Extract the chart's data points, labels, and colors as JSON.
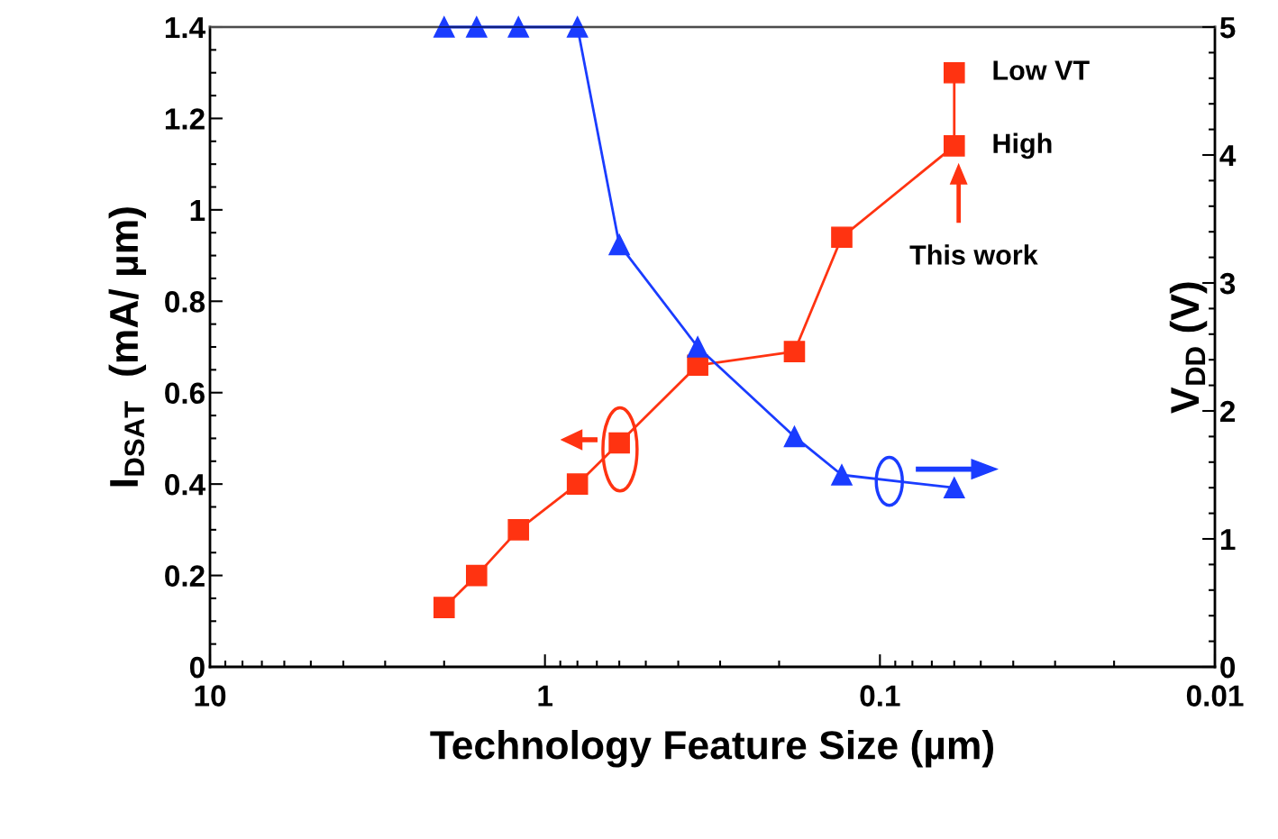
{
  "chart_data": {
    "type": "line",
    "xlabel": "Technology Feature Size (µm)",
    "ylabel": "I$_{DSAT}$  (mA/ µm)",
    "y2label": "V$_{DD}$ (V)",
    "log": "x",
    "xlim": [
      10,
      0.01
    ],
    "xticks": [
      10,
      1,
      0.1,
      0.01
    ],
    "ylim": [
      0,
      1.4
    ],
    "yticks": [
      0,
      0.2,
      0.4,
      0.6,
      0.8,
      1,
      1.2,
      1.4
    ],
    "y2lim": [
      0,
      5
    ],
    "y2ticks": [
      0,
      1,
      2,
      3,
      4,
      5
    ],
    "grid": false,
    "legend": false,
    "line_style": "solid",
    "series": [
      {
        "color": "#ff3311",
        "marker": "square",
        "x": [
          2,
          1.6,
          1.2,
          0.8,
          0.6,
          0.35,
          0.18,
          0.13,
          0.06,
          0.06
        ],
        "values": [
          0.13,
          0.2,
          0.3,
          0.4,
          0.49,
          0.66,
          0.69,
          0.94,
          1.14,
          1.3
        ]
      },
      {
        "color": "#1a3cff",
        "marker": "triangle",
        "axis": "y2",
        "x": [
          2,
          1.6,
          1.2,
          0.8,
          0.6,
          0.35,
          0.18,
          0.13,
          0.06
        ],
        "values": [
          5,
          5,
          5,
          5,
          3.3,
          2.5,
          1.8,
          1.5,
          1.4
        ]
      }
    ],
    "annotations": [
      {
        "text": "Low VT",
        "x": 0.06,
        "y": 1.3
      },
      {
        "text": "High",
        "x": 0.06,
        "y": 1.14
      },
      "This work"
    ]
  }
}
